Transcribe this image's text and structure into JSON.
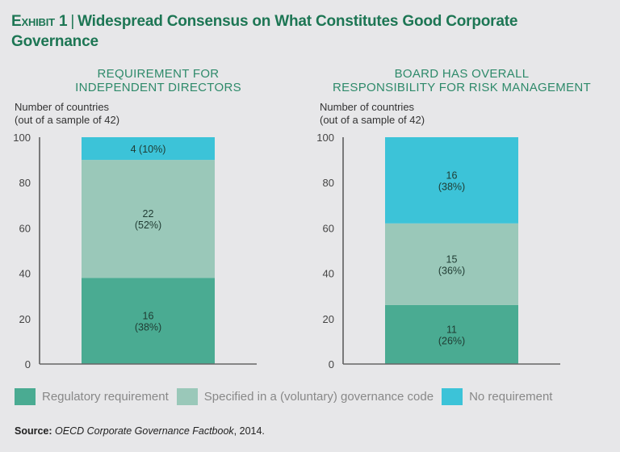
{
  "header": {
    "exhibit_label": "Exhibit 1",
    "title": "Widespread Consensus on What Constitutes Good Corporate Governance"
  },
  "colors": {
    "regulatory": "#4aab92",
    "voluntary": "#9ac8b9",
    "none": "#3cc3d8",
    "title": "#1d7654"
  },
  "chart_data": [
    {
      "type": "bar",
      "stacked": true,
      "title": "REQUIREMENT FOR INDEPENDENT DIRECTORS",
      "ylabel": "Number of countries (out of a sample of 42)",
      "ylabel_lines": [
        "Number of countries",
        "(out of a sample of 42)"
      ],
      "ylim": [
        0,
        100
      ],
      "yticks": [
        0,
        20,
        40,
        60,
        80,
        100
      ],
      "grid": false,
      "series": [
        {
          "name": "Regulatory requirement",
          "count": 16,
          "percent": 38,
          "label_lines": [
            "16",
            "(38%)"
          ]
        },
        {
          "name": "Specified in a (voluntary) governance code",
          "count": 22,
          "percent": 52,
          "label_lines": [
            "22",
            "(52%)"
          ]
        },
        {
          "name": "No requirement",
          "count": 4,
          "percent": 10,
          "label_lines": [
            "4 (10%)"
          ]
        }
      ]
    },
    {
      "type": "bar",
      "stacked": true,
      "title": "BOARD HAS OVERALL RESPONSIBILITY FOR RISK MANAGEMENT",
      "ylabel": "Number of countries (out of a sample of 42)",
      "ylabel_lines": [
        "Number of countries",
        "(out of a sample of 42)"
      ],
      "ylim": [
        0,
        100
      ],
      "yticks": [
        0,
        20,
        40,
        60,
        80,
        100
      ],
      "grid": false,
      "series": [
        {
          "name": "Regulatory requirement",
          "count": 11,
          "percent": 26,
          "label_lines": [
            "11",
            "(26%)"
          ]
        },
        {
          "name": "Specified in a (voluntary) governance code",
          "count": 15,
          "percent": 36,
          "label_lines": [
            "15",
            "(36%)"
          ]
        },
        {
          "name": "No requirement",
          "count": 16,
          "percent": 38,
          "label_lines": [
            "16",
            "(38%)"
          ]
        }
      ]
    }
  ],
  "panels": [
    {
      "title_lines": [
        "REQUIREMENT FOR",
        "INDEPENDENT DIRECTORS"
      ]
    },
    {
      "title_lines": [
        "BOARD HAS OVERALL",
        "RESPONSIBILITY FOR RISK MANAGEMENT"
      ]
    }
  ],
  "legend": [
    {
      "label": "Regulatory requirement",
      "key": "regulatory"
    },
    {
      "label": "Specified in a (voluntary) governance code",
      "key": "voluntary"
    },
    {
      "label": "No requirement",
      "key": "none"
    }
  ],
  "source": {
    "label": "Source:",
    "publication": "OECD Corporate Governance Factbook",
    "year": ", 2014."
  }
}
